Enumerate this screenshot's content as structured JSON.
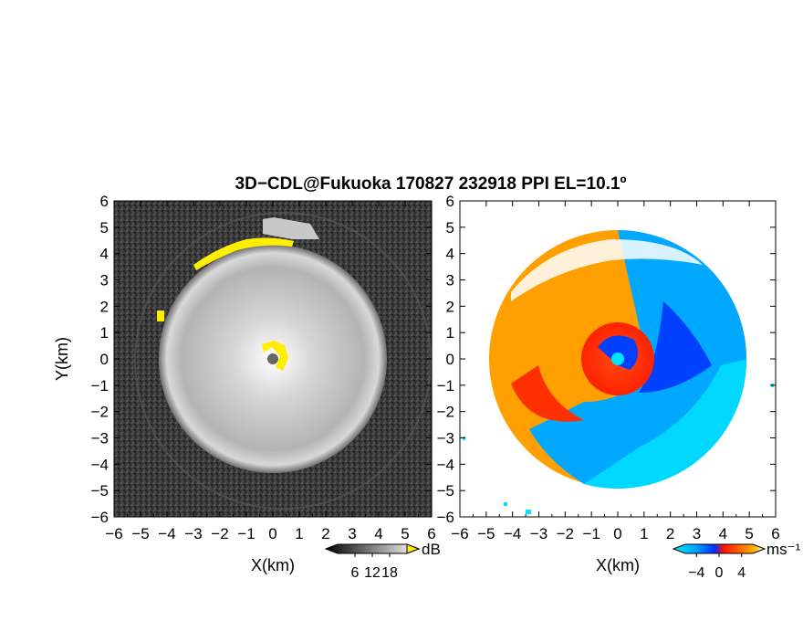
{
  "title": "3D−CDL@Fukuoka 170827 232918 PPI EL=10.1º",
  "chart_data": [
    {
      "type": "heatmap",
      "panel": "left",
      "quantity": "reflectivity (grayscale)",
      "xlabel": "X(km)",
      "ylabel": "Y(km)",
      "xlim": [
        -6,
        6
      ],
      "ylim": [
        -6,
        6
      ],
      "x_ticks": [
        "−6",
        "−5",
        "−4",
        "−3",
        "−2",
        "−1",
        "0",
        "1",
        "2",
        "3",
        "4",
        "5",
        "6"
      ],
      "y_ticks": [
        "−6",
        "−5",
        "−4",
        "−3",
        "−2",
        "−1",
        "0",
        "1",
        "2",
        "3",
        "4",
        "5",
        "6"
      ],
      "colorbar": {
        "unit": "dB",
        "ticks": [
          "6",
          "12",
          "18"
        ],
        "range": [
          0,
          24
        ]
      },
      "features": {
        "echo_disk_radius_km": 4.3,
        "center_marker_color": "#666666",
        "highlight_color": "#ffff00"
      }
    },
    {
      "type": "heatmap",
      "panel": "right",
      "quantity": "Doppler velocity",
      "xlabel": "X(km)",
      "xlim": [
        -6,
        6
      ],
      "ylim": [
        -6,
        6
      ],
      "x_ticks": [
        "−6",
        "−5",
        "−4",
        "−3",
        "−2",
        "−1",
        "0",
        "1",
        "2",
        "3",
        "4",
        "5",
        "6"
      ],
      "y_ticks": [
        "−6",
        "−5",
        "−4",
        "−3",
        "−2",
        "−1",
        "0",
        "1",
        "2",
        "3",
        "4",
        "5",
        "6"
      ],
      "colorbar": {
        "unit": "ms⁻¹",
        "ticks": [
          "−4",
          "0",
          "4"
        ],
        "range": [
          -6,
          6
        ]
      },
      "features": {
        "echo_disk_radius_km": 4.6,
        "colors": [
          "#00e8ff",
          "#0060ff",
          "#ff2000",
          "#ff8c00",
          "#ffffff"
        ]
      }
    }
  ]
}
